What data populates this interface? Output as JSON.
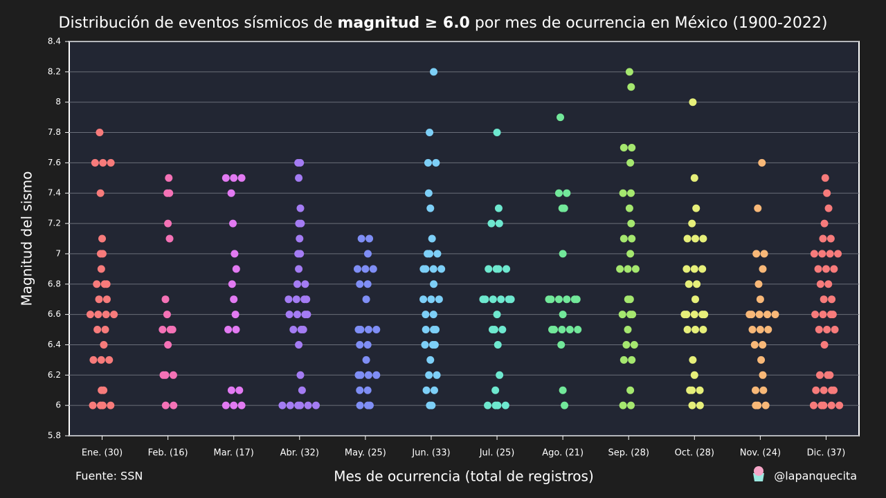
{
  "chart_data": {
    "type": "strip",
    "title_parts": [
      "Distribución de eventos sísmicos de ",
      "magnitud ≥ 6.0",
      " por mes de ocurrencia en México (1900-2022)"
    ],
    "y_label": "Magnitud del sismo",
    "x_label": "Mes de ocurrencia (total de registros)",
    "source": "Fuente: SSN",
    "credit": "@lapanquecita",
    "ylim": [
      5.8,
      8.4
    ],
    "yticks": [
      5.8,
      6,
      6.2,
      6.4,
      6.6,
      6.8,
      7,
      7.2,
      7.4,
      7.6,
      7.8,
      8,
      8.2,
      8.4
    ],
    "grid": true,
    "categories": [
      "Ene. (30)",
      "Feb. (16)",
      "Mar. (17)",
      "Abr. (32)",
      "May. (25)",
      "Jun. (33)",
      "Jul. (25)",
      "Ago. (21)",
      "Sep. (28)",
      "Oct. (28)",
      "Nov. (24)",
      "Dic. (37)"
    ],
    "colors": [
      "#f77b7b",
      "#f472b6",
      "#e27af2",
      "#a47cf3",
      "#7f8ef5",
      "#7dcff7",
      "#6ee8cf",
      "#72e89a",
      "#a5e76f",
      "#e6ef7a",
      "#f8b878",
      "#f77b7b"
    ],
    "values": [
      [
        7.8,
        7.6,
        7.6,
        7.6,
        7.4,
        7.1,
        7.0,
        7.0,
        6.9,
        6.8,
        6.8,
        6.8,
        6.7,
        6.7,
        6.6,
        6.6,
        6.6,
        6.6,
        6.5,
        6.5,
        6.4,
        6.3,
        6.3,
        6.3,
        6.1,
        6.1,
        6.0,
        6.0,
        6.0,
        6.0
      ],
      [
        7.5,
        7.4,
        7.4,
        7.2,
        7.1,
        6.7,
        6.6,
        6.5,
        6.5,
        6.5,
        6.4,
        6.2,
        6.2,
        6.2,
        6.0,
        6.0
      ],
      [
        7.5,
        7.5,
        7.5,
        7.4,
        7.2,
        7.0,
        6.9,
        6.8,
        6.7,
        6.6,
        6.5,
        6.5,
        6.1,
        6.1,
        6.0,
        6.0,
        6.0
      ],
      [
        7.6,
        7.6,
        7.5,
        7.3,
        7.2,
        7.2,
        7.1,
        7.0,
        7.0,
        6.9,
        6.8,
        6.8,
        6.7,
        6.7,
        6.7,
        6.7,
        6.6,
        6.6,
        6.6,
        6.6,
        6.5,
        6.5,
        6.5,
        6.4,
        6.2,
        6.1,
        6.0,
        6.0,
        6.0,
        6.0,
        6.0,
        6.0
      ],
      [
        7.1,
        7.1,
        7.0,
        6.9,
        6.9,
        6.9,
        6.8,
        6.8,
        6.7,
        6.5,
        6.5,
        6.5,
        6.5,
        6.4,
        6.4,
        6.3,
        6.2,
        6.2,
        6.2,
        6.2,
        6.1,
        6.1,
        6.0,
        6.0,
        6.0
      ],
      [
        8.2,
        7.8,
        7.6,
        7.6,
        7.4,
        7.3,
        7.1,
        7.0,
        7.0,
        7.0,
        6.9,
        6.9,
        6.9,
        6.9,
        6.8,
        6.7,
        6.7,
        6.7,
        6.6,
        6.6,
        6.5,
        6.5,
        6.5,
        6.4,
        6.4,
        6.4,
        6.3,
        6.2,
        6.2,
        6.1,
        6.1,
        6.0,
        6.0
      ],
      [
        7.8,
        7.3,
        7.2,
        7.2,
        6.9,
        6.9,
        6.9,
        6.9,
        6.7,
        6.7,
        6.7,
        6.7,
        6.7,
        6.7,
        6.6,
        6.5,
        6.5,
        6.5,
        6.4,
        6.2,
        6.1,
        6.0,
        6.0,
        6.0,
        6.0
      ],
      [
        7.9,
        7.4,
        7.4,
        7.3,
        7.3,
        7.0,
        6.7,
        6.7,
        6.7,
        6.7,
        6.7,
        6.7,
        6.6,
        6.5,
        6.5,
        6.5,
        6.5,
        6.5,
        6.4,
        6.1,
        6.0
      ],
      [
        8.2,
        8.1,
        7.7,
        7.7,
        7.6,
        7.4,
        7.4,
        7.3,
        7.2,
        7.1,
        7.1,
        7.0,
        6.9,
        6.9,
        6.9,
        6.7,
        6.7,
        6.6,
        6.6,
        6.6,
        6.5,
        6.4,
        6.4,
        6.3,
        6.3,
        6.1,
        6.0,
        6.0
      ],
      [
        8.0,
        7.5,
        7.3,
        7.2,
        7.1,
        7.1,
        7.1,
        6.9,
        6.9,
        6.9,
        6.8,
        6.8,
        6.7,
        6.6,
        6.6,
        6.6,
        6.6,
        6.6,
        6.5,
        6.5,
        6.5,
        6.3,
        6.2,
        6.1,
        6.1,
        6.1,
        6.0,
        6.0
      ],
      [
        7.6,
        7.3,
        7.0,
        7.0,
        6.9,
        6.8,
        6.7,
        6.6,
        6.6,
        6.6,
        6.6,
        6.6,
        6.5,
        6.5,
        6.5,
        6.4,
        6.4,
        6.3,
        6.2,
        6.1,
        6.1,
        6.0,
        6.0,
        6.0
      ],
      [
        7.5,
        7.4,
        7.3,
        7.2,
        7.1,
        7.1,
        7.0,
        7.0,
        7.0,
        7.0,
        6.9,
        6.9,
        6.9,
        6.8,
        6.8,
        6.7,
        6.7,
        6.6,
        6.6,
        6.6,
        6.6,
        6.5,
        6.5,
        6.5,
        6.4,
        6.2,
        6.2,
        6.2,
        6.1,
        6.1,
        6.1,
        6.1,
        6.0,
        6.0,
        6.0,
        6.0,
        6.0
      ]
    ]
  }
}
